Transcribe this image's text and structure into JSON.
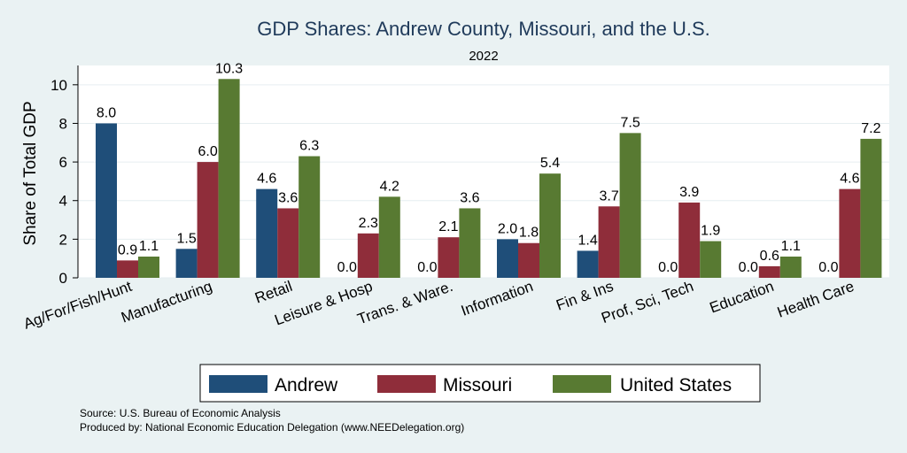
{
  "chart_data": {
    "type": "bar",
    "title": "GDP Shares: Andrew County, Missouri, and the U.S.",
    "subtitle": "2022",
    "xlabel": "",
    "ylabel": "Share of Total GDP",
    "ylim": [
      0,
      11
    ],
    "yticks": [
      0,
      2,
      4,
      6,
      8,
      10
    ],
    "grid": true,
    "legend_position": "bottom",
    "categories": [
      "Ag/For/Fish/Hunt",
      "Manufacturing",
      "Retail",
      "Leisure & Hosp",
      "Trans. & Ware.",
      "Information",
      "Fin & Ins",
      "Prof, Sci, Tech",
      "Education",
      "Health Care"
    ],
    "series": [
      {
        "name": "Andrew",
        "color": "#1f4e79",
        "values": [
          8.0,
          1.5,
          4.6,
          0.0,
          0.0,
          2.0,
          1.4,
          0.0,
          0.0,
          0.0
        ],
        "labels": [
          "8.0",
          "1.5",
          "4.6",
          "0.0",
          "0.0",
          "2.0",
          "1.4",
          "0.0",
          "0.0",
          "0.0"
        ]
      },
      {
        "name": "Missouri",
        "color": "#8f2d3a",
        "values": [
          0.9,
          6.0,
          3.6,
          2.3,
          2.1,
          1.8,
          3.7,
          3.9,
          0.6,
          4.6
        ],
        "labels": [
          "0.9",
          "6.0",
          "3.6",
          "2.3",
          "2.1",
          "1.8",
          "3.7",
          "3.9",
          "0.6",
          "4.6"
        ]
      },
      {
        "name": "United States",
        "color": "#587a32",
        "values": [
          1.1,
          10.3,
          6.3,
          4.2,
          3.6,
          5.4,
          7.5,
          1.9,
          1.1,
          7.2
        ],
        "labels": [
          "1.1",
          "10.3",
          "6.3",
          "4.2",
          "3.6",
          "5.4",
          "7.5",
          "1.9",
          "1.1",
          "7.2"
        ]
      }
    ]
  },
  "source_lines": [
    "Source: U.S. Bureau of Economic Analysis",
    "Produced by: National Economic Education Delegation (www.NEEDelegation.org)"
  ]
}
